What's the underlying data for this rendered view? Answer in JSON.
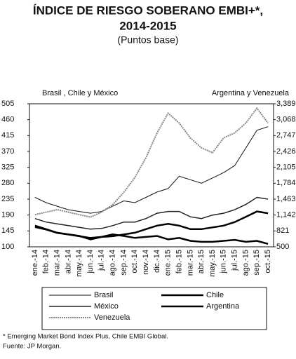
{
  "chart_data": {
    "type": "line",
    "title": [
      "ÍNDICE DE RIESGO SOBERANO EMBI+*,",
      "2014-2015"
    ],
    "subtitle": "(Puntos base)",
    "ylabel": "Brasil , Chile y México",
    "y2label": "Argentina y Venezuela",
    "categories": [
      "ene.-14",
      "feb.-14",
      "mar.-14",
      "abr.-14",
      "may.-14",
      "jun.-14",
      "jul.-14",
      "ago.-14",
      "sep.-14",
      "oct.-14",
      "nov.-14",
      "dic.-14",
      "ene.-15",
      "feb.-15",
      "mar.-15",
      "abr.-15",
      "may.-15",
      "jun.-15",
      "jul.-15",
      "ago.-15",
      "sep.-15",
      "oct.-15"
    ],
    "ylim": [
      100,
      505
    ],
    "yticks": [
      100,
      145,
      190,
      235,
      280,
      325,
      370,
      415,
      460,
      505
    ],
    "y2lim": [
      500,
      3389
    ],
    "y2ticks": [
      500,
      821,
      {
        "value": 1142,
        "label": "1,142"
      },
      {
        "value": 1463,
        "label": "1,463"
      },
      {
        "value": 1784,
        "label": "1,784"
      },
      {
        "value": 2105,
        "label": "2,105"
      },
      {
        "value": 2426,
        "label": "2,426"
      },
      {
        "value": 2747,
        "label": "2,747"
      },
      {
        "value": 3068,
        "label": "3,068"
      },
      {
        "value": 3389,
        "label": "3,389"
      }
    ],
    "series": [
      {
        "name": "Brasil",
        "color": "#111111",
        "values": [
          240,
          225,
          215,
          205,
          200,
          195,
          200,
          215,
          230,
          225,
          240,
          255,
          265,
          300,
          290,
          280,
          295,
          310,
          330,
          380,
          430,
          440
        ]
      },
      {
        "name": "Chile",
        "color": "#000000",
        "values": [
          160,
          150,
          140,
          135,
          130,
          125,
          128,
          130,
          135,
          140,
          150,
          160,
          165,
          160,
          150,
          150,
          155,
          160,
          170,
          185,
          200,
          195
        ]
      },
      {
        "name": "México",
        "color": "#222222",
        "values": [
          180,
          170,
          165,
          160,
          155,
          150,
          152,
          160,
          170,
          170,
          180,
          195,
          200,
          200,
          185,
          180,
          190,
          195,
          205,
          220,
          240,
          235
        ]
      },
      {
        "name": "Argentina",
        "color": "#000000",
        "axis": "y2",
        "values": [
          900,
          850,
          780,
          750,
          720,
          650,
          700,
          750,
          720,
          680,
          700,
          720,
          650,
          680,
          620,
          600,
          600,
          620,
          640,
          600,
          620,
          560
        ]
      },
      {
        "name": "Venezuela",
        "color": "#888888",
        "axis": "y2",
        "values": [
          1150,
          1200,
          1250,
          1200,
          1150,
          1100,
          1200,
          1350,
          1600,
          1900,
          2300,
          2800,
          3200,
          3000,
          2700,
          2500,
          2400,
          2700,
          2800,
          3000,
          3300,
          3000
        ]
      }
    ],
    "footnotes": [
      "* Emerging Market Bond Index Plus, Chile EMBI Global.",
      "Fuente: JP Morgan."
    ]
  }
}
